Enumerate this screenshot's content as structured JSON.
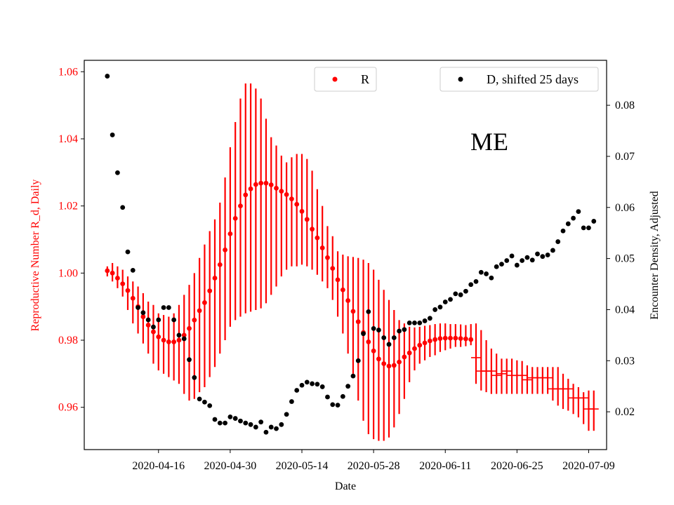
{
  "chart_data": {
    "type": "scatter",
    "annotation": "ME",
    "xlabel": "Date",
    "ylabel_left": "Reproductive Number R_d, Daily",
    "ylabel_right": "Encounter Density, Adjusted",
    "x_tick_labels": [
      "2020-04-16",
      "2020-04-30",
      "2020-05-14",
      "2020-05-28",
      "2020-06-11",
      "2020-06-25",
      "2020-07-09"
    ],
    "y_left_ticks": [
      "0.96",
      "0.98",
      "1.00",
      "1.02",
      "1.04",
      "1.06"
    ],
    "y_right_ticks": [
      "0.02",
      "0.03",
      "0.04",
      "0.05",
      "0.06",
      "0.07",
      "0.08"
    ],
    "y_left_range": [
      0.9474,
      1.0634
    ],
    "y_right_range": [
      0.0126,
      0.0888
    ],
    "x_start_date": "2020-04-06",
    "x_range_days": [
      -4.5,
      97.5
    ],
    "colors": {
      "R": "#ff0000",
      "D": "#000000",
      "left_axis": "#ff0000"
    },
    "legend": {
      "R_label": "R",
      "D_label": "D, shifted 25 days",
      "R_loc": "upper-center",
      "D_loc": "upper-right"
    },
    "series": [
      {
        "name": "R",
        "x_days": [
          0,
          1,
          2,
          3,
          4,
          5,
          6,
          7,
          8,
          9,
          10,
          11,
          12,
          13,
          14,
          15,
          16,
          17,
          18,
          19,
          20,
          21,
          22,
          23,
          24,
          25,
          26,
          27,
          28,
          29,
          30,
          31,
          32,
          33,
          34,
          35,
          36,
          37,
          38,
          39,
          40,
          41,
          42,
          43,
          44,
          45,
          46,
          47,
          48,
          49,
          50,
          51,
          52,
          53,
          54,
          55,
          56,
          57,
          58,
          59,
          60,
          61,
          62,
          63,
          64,
          65,
          66,
          67,
          68,
          69,
          70,
          71,
          72,
          73,
          74,
          75,
          76,
          77,
          78,
          79,
          80,
          81,
          82,
          83,
          84,
          85,
          86,
          87,
          88,
          89,
          90,
          91,
          92,
          93,
          94,
          95
        ],
        "values": [
          1.0007,
          1.0,
          0.9985,
          0.9968,
          0.9948,
          0.9925,
          0.99,
          0.987,
          0.9845,
          0.9825,
          0.981,
          0.98,
          0.9795,
          0.9795,
          0.98,
          0.9815,
          0.9835,
          0.986,
          0.9888,
          0.9912,
          0.9947,
          0.9985,
          1.0025,
          1.0069,
          1.0117,
          1.0163,
          1.02,
          1.0233,
          1.0251,
          1.0264,
          1.0268,
          1.0268,
          1.0263,
          1.0253,
          1.0244,
          1.0234,
          1.0221,
          1.0205,
          1.0184,
          1.016,
          1.0131,
          1.0105,
          1.0075,
          1.0046,
          1.0014,
          0.998,
          0.995,
          0.9918,
          0.9886,
          0.9855,
          0.9823,
          0.9795,
          0.9768,
          0.9744,
          0.973,
          0.9723,
          0.9725,
          0.9735,
          0.975,
          0.9762,
          0.9775,
          0.9785,
          0.9792,
          0.9798,
          0.9802,
          0.9805,
          0.9806,
          0.9806,
          0.9806,
          0.9805,
          0.9804,
          0.9802,
          null,
          null,
          null,
          null,
          null,
          null,
          null,
          null,
          null,
          null,
          null,
          null,
          null,
          null,
          null,
          null,
          null,
          null,
          null,
          null,
          null,
          null,
          null,
          null
        ],
        "err_low": [
          0.999,
          0.9975,
          0.9955,
          0.993,
          0.989,
          0.985,
          0.982,
          0.979,
          0.976,
          0.973,
          0.971,
          0.97,
          0.969,
          0.968,
          0.967,
          0.964,
          0.962,
          0.9625,
          0.9645,
          0.966,
          0.969,
          0.972,
          0.976,
          0.98,
          0.984,
          0.986,
          0.987,
          0.988,
          0.9885,
          0.989,
          0.9895,
          0.991,
          0.9935,
          0.996,
          0.999,
          1.001,
          1.002,
          1.002,
          1.0025,
          1.002,
          1.001,
          0.9995,
          0.9975,
          0.9955,
          0.992,
          0.987,
          0.982,
          0.976,
          0.97,
          0.962,
          0.956,
          0.952,
          0.9505,
          0.95,
          0.95,
          0.951,
          0.954,
          0.958,
          0.9625,
          0.9675,
          0.971,
          0.973,
          0.974,
          0.975,
          0.9755,
          0.9765,
          0.977,
          0.9775,
          0.978,
          0.978,
          0.9782,
          0.9785,
          null,
          null,
          null,
          null,
          null,
          null,
          null,
          null,
          null,
          null,
          null,
          null,
          null,
          null,
          null,
          null,
          null,
          null,
          null,
          null,
          null,
          null,
          null,
          null
        ],
        "err_high": [
          1.002,
          1.003,
          1.002,
          1.001,
          0.999,
          0.9975,
          0.996,
          0.994,
          0.9915,
          0.9905,
          0.988,
          0.9875,
          0.987,
          0.988,
          0.9905,
          0.9935,
          0.9965,
          1.0,
          1.0045,
          1.0085,
          1.0125,
          1.016,
          1.021,
          1.0285,
          1.0375,
          1.045,
          1.052,
          1.0565,
          1.0565,
          1.055,
          1.052,
          1.046,
          1.0405,
          1.038,
          1.035,
          1.033,
          1.0345,
          1.0355,
          1.0355,
          1.034,
          1.0305,
          1.025,
          1.02,
          1.014,
          1.011,
          1.0065,
          1.0055,
          1.005,
          1.0048,
          1.0045,
          1.004,
          1.003,
          1.001,
          0.998,
          0.995,
          0.992,
          0.989,
          0.986,
          0.985,
          0.984,
          0.9838,
          0.984,
          0.9843,
          0.9845,
          0.9848,
          0.985,
          0.985,
          0.9848,
          0.9848,
          0.9847,
          0.9845,
          0.9848,
          null,
          null,
          null,
          null,
          null,
          null,
          null,
          null,
          null,
          null,
          null,
          null,
          null,
          null,
          null,
          null,
          null,
          null,
          null,
          null,
          null,
          null,
          null,
          null
        ],
        "extended_x_days": [
          72,
          73,
          74,
          75,
          76,
          77,
          78,
          79,
          80,
          81,
          82,
          83,
          84,
          85,
          86,
          87,
          88,
          89,
          90,
          91,
          92,
          93,
          94,
          95
        ],
        "extended_values": [
          0.9748,
          0.9708,
          0.9708,
          0.9708,
          0.9695,
          0.97,
          0.9708,
          0.9695,
          0.9695,
          0.9695,
          0.9682,
          0.9688,
          0.9688,
          0.9688,
          0.9688,
          0.9655,
          0.9655,
          0.9655,
          0.9655,
          0.9628,
          0.9628,
          0.9628,
          0.9595,
          0.9595
        ],
        "extended_err_low": [
          0.967,
          0.965,
          0.9645,
          0.964,
          0.964,
          0.964,
          0.964,
          0.964,
          0.964,
          0.964,
          0.964,
          0.964,
          0.964,
          0.964,
          0.964,
          0.962,
          0.9605,
          0.9595,
          0.959,
          0.958,
          0.957,
          0.955,
          0.953,
          0.953
        ],
        "extended_err_high": [
          0.985,
          0.983,
          0.98,
          0.9775,
          0.976,
          0.9745,
          0.9745,
          0.9745,
          0.974,
          0.9738,
          0.9725,
          0.972,
          0.972,
          0.972,
          0.972,
          0.972,
          0.972,
          0.97,
          0.9685,
          0.967,
          0.966,
          0.9645,
          0.965,
          0.965
        ]
      },
      {
        "name": "D, shifted 25 days",
        "x_days": [
          0,
          1,
          2,
          3,
          4,
          5,
          6,
          7,
          8,
          9,
          10,
          11,
          12,
          13,
          14,
          15,
          16,
          17,
          18,
          19,
          20,
          21,
          22,
          23,
          24,
          25,
          26,
          27,
          28,
          29,
          30,
          31,
          32,
          33,
          34,
          35,
          36,
          37,
          38,
          39,
          40,
          41,
          42,
          43,
          44,
          45,
          46,
          47,
          48,
          49,
          50,
          51,
          52,
          53,
          54,
          55,
          56,
          57,
          58,
          59,
          60,
          61,
          62,
          63,
          64,
          65,
          66,
          67,
          68,
          69,
          70,
          71,
          72,
          73,
          74,
          75,
          76,
          77,
          78,
          79,
          80,
          81,
          82,
          83,
          84,
          85,
          86,
          87,
          88,
          89,
          90,
          91,
          92,
          93,
          94,
          95
        ],
        "values": [
          0.0857,
          0.0742,
          0.0668,
          0.06,
          0.0513,
          0.0477,
          0.0404,
          0.0394,
          0.038,
          0.0366,
          0.038,
          0.0404,
          0.0404,
          0.038,
          0.035,
          0.0343,
          0.0302,
          0.0267,
          0.0225,
          0.0219,
          0.0212,
          0.0185,
          0.0178,
          0.0178,
          0.019,
          0.0187,
          0.0182,
          0.0178,
          0.0175,
          0.017,
          0.018,
          0.016,
          0.017,
          0.0167,
          0.0175,
          0.0195,
          0.022,
          0.0242,
          0.0252,
          0.0258,
          0.0255,
          0.0254,
          0.0249,
          0.0229,
          0.0214,
          0.0213,
          0.023,
          0.025,
          0.027,
          0.03,
          0.0353,
          0.0396,
          0.0363,
          0.036,
          0.0345,
          0.0332,
          0.0345,
          0.0358,
          0.0361,
          0.0374,
          0.0374,
          0.0374,
          0.0378,
          0.0383,
          0.04,
          0.0405,
          0.0415,
          0.042,
          0.0431,
          0.0429,
          0.0436,
          0.0449,
          0.0455,
          0.0473,
          0.047,
          0.0462,
          0.0484,
          0.0489,
          0.0496,
          0.0505,
          0.0487,
          0.0496,
          0.0502,
          0.0497,
          0.0509,
          0.0504,
          0.0507,
          0.0516,
          0.0533,
          0.0554,
          0.0568,
          0.0579,
          0.0592,
          0.056,
          0.056,
          0.0573
        ]
      }
    ]
  }
}
